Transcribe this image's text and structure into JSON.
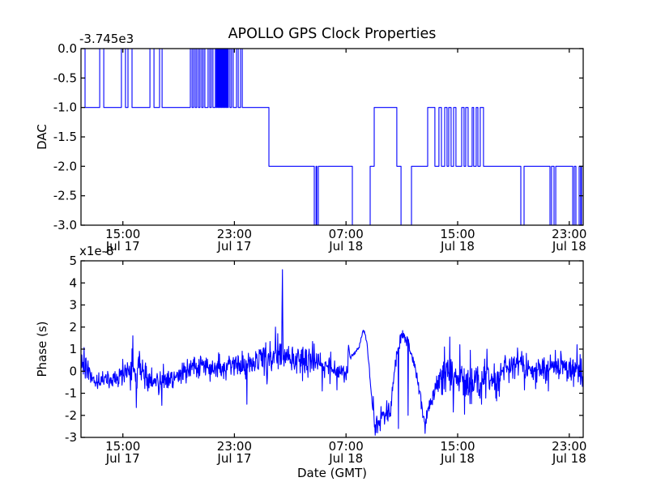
{
  "figure": {
    "background": "#ffffff",
    "frame_color": "#000000",
    "line_color": "#0000ff"
  },
  "chart_data": [
    {
      "type": "line",
      "subplot": "top",
      "title": "APOLLO GPS Clock Properties",
      "ylabel": "DAC",
      "offset_label": "-3.745e3",
      "ylim": [
        -3.0,
        0.0
      ],
      "ytick_values": [
        0,
        -0.5,
        -1,
        -1.5,
        -2,
        -2.5,
        -3
      ],
      "ytick_labels": [
        "0.0",
        "-0.5",
        "-1.0",
        "-1.5",
        "-2.0",
        "-2.5",
        "-3.0"
      ],
      "xlim_hours": [
        0,
        36
      ],
      "xtick_hours": [
        3,
        11,
        19,
        27,
        35
      ],
      "xtick_labels": [
        [
          "15:00",
          "Jul 17"
        ],
        [
          "23:00",
          "Jul 17"
        ],
        [
          "07:00",
          "Jul 18"
        ],
        [
          "15:00",
          "Jul 18"
        ],
        [
          "23:00",
          "Jul 18"
        ]
      ],
      "grid": false,
      "legend": "none",
      "series": [
        {
          "name": "dac-steps",
          "style": "steps",
          "segments": [
            [
              0,
              0.29,
              0
            ],
            [
              0.29,
              1.34,
              -1
            ],
            [
              1.34,
              1.63,
              0
            ],
            [
              1.63,
              2.9,
              -1
            ],
            [
              2.9,
              3.19,
              0
            ],
            [
              3.19,
              3.37,
              -1
            ],
            [
              3.37,
              3.66,
              0
            ],
            [
              3.66,
              4.94,
              -1
            ],
            [
              4.94,
              5.23,
              0
            ],
            [
              5.23,
              5.63,
              -1
            ],
            [
              5.63,
              5.81,
              0
            ],
            [
              5.81,
              7.84,
              -1
            ],
            [
              7.84,
              7.96,
              0
            ],
            [
              7.96,
              8.07,
              -1
            ],
            [
              8.07,
              8.19,
              0
            ],
            [
              8.19,
              8.3,
              -1
            ],
            [
              8.3,
              8.42,
              0
            ],
            [
              8.42,
              8.53,
              -1
            ],
            [
              8.53,
              8.65,
              0
            ],
            [
              8.65,
              8.76,
              -1
            ],
            [
              8.76,
              8.88,
              0
            ],
            [
              8.88,
              9.11,
              -1
            ],
            [
              9.11,
              9.23,
              0
            ],
            [
              9.23,
              9.34,
              -1
            ],
            [
              9.34,
              9.46,
              0
            ],
            [
              9.46,
              9.63,
              -1
            ],
            [
              9.63,
              9.7,
              0
            ],
            [
              9.7,
              9.75,
              -1
            ],
            [
              9.75,
              9.81,
              0
            ],
            [
              9.81,
              9.87,
              -1
            ],
            [
              9.87,
              9.93,
              0
            ],
            [
              9.93,
              9.99,
              -1
            ],
            [
              9.99,
              10.05,
              0
            ],
            [
              10.05,
              10.11,
              -1
            ],
            [
              10.11,
              10.17,
              0
            ],
            [
              10.17,
              10.22,
              -1
            ],
            [
              10.22,
              10.28,
              0
            ],
            [
              10.28,
              10.33,
              -1
            ],
            [
              10.33,
              10.39,
              0
            ],
            [
              10.39,
              10.44,
              -1
            ],
            [
              10.44,
              10.5,
              0
            ],
            [
              10.5,
              10.56,
              -1
            ],
            [
              10.56,
              10.68,
              0
            ],
            [
              10.68,
              10.79,
              -1
            ],
            [
              10.79,
              10.91,
              0
            ],
            [
              10.91,
              11.15,
              -1
            ],
            [
              11.15,
              11.27,
              0
            ],
            [
              11.27,
              11.44,
              -1
            ],
            [
              11.44,
              11.56,
              0
            ],
            [
              11.56,
              13.47,
              -1
            ],
            [
              13.47,
              16.72,
              -2
            ],
            [
              16.72,
              16.85,
              -3
            ],
            [
              16.85,
              16.9,
              -2
            ],
            [
              16.9,
              17.01,
              -3
            ],
            [
              17.01,
              19.45,
              -2
            ],
            [
              19.45,
              20.73,
              -3
            ],
            [
              20.73,
              21.02,
              -2
            ],
            [
              21.02,
              22.64,
              -1
            ],
            [
              22.64,
              22.94,
              -2
            ],
            [
              22.94,
              23.69,
              -3
            ],
            [
              23.69,
              24.85,
              -2
            ],
            [
              24.85,
              25.37,
              -1
            ],
            [
              25.37,
              25.66,
              -2
            ],
            [
              25.66,
              25.84,
              -1
            ],
            [
              25.84,
              26.07,
              -2
            ],
            [
              26.07,
              26.24,
              -1
            ],
            [
              26.24,
              26.36,
              -2
            ],
            [
              26.36,
              26.53,
              -1
            ],
            [
              26.53,
              26.71,
              -2
            ],
            [
              26.71,
              26.88,
              -1
            ],
            [
              26.88,
              27.29,
              -2
            ],
            [
              27.29,
              27.46,
              -1
            ],
            [
              27.46,
              27.58,
              -2
            ],
            [
              27.58,
              27.75,
              -1
            ],
            [
              27.75,
              28.04,
              -2
            ],
            [
              28.04,
              28.15,
              -1
            ],
            [
              28.15,
              28.33,
              -2
            ],
            [
              28.33,
              28.45,
              -1
            ],
            [
              28.45,
              28.62,
              -2
            ],
            [
              28.62,
              28.85,
              -1
            ],
            [
              28.85,
              31.53,
              -2
            ],
            [
              31.53,
              31.76,
              -3
            ],
            [
              31.76,
              33.62,
              -2
            ],
            [
              33.62,
              33.73,
              -3
            ],
            [
              33.73,
              33.91,
              -2
            ],
            [
              33.91,
              34.03,
              -3
            ],
            [
              34.03,
              35.25,
              -2
            ],
            [
              35.25,
              35.36,
              -3
            ],
            [
              35.36,
              35.48,
              -2
            ],
            [
              35.48,
              35.71,
              -3
            ],
            [
              35.71,
              35.82,
              -2
            ],
            [
              35.82,
              35.88,
              -3
            ],
            [
              35.88,
              36,
              -2
            ]
          ]
        }
      ]
    },
    {
      "type": "line",
      "subplot": "bottom",
      "title": "",
      "ylabel": "Phase (s)",
      "xlabel": "Date (GMT)",
      "offset_label": "x1e-8",
      "ylim": [
        -3,
        5
      ],
      "ytick_values": [
        5,
        4,
        3,
        2,
        1,
        0,
        -1,
        -2,
        -3
      ],
      "ytick_labels": [
        "5",
        "4",
        "3",
        "2",
        "1",
        "0",
        "-1",
        "-2",
        "-3"
      ],
      "xlim_hours": [
        0,
        36
      ],
      "xtick_hours": [
        3,
        11,
        19,
        27,
        35
      ],
      "xtick_labels": [
        [
          "15:00",
          "Jul 17"
        ],
        [
          "23:00",
          "Jul 17"
        ],
        [
          "07:00",
          "Jul 18"
        ],
        [
          "15:00",
          "Jul 18"
        ],
        [
          "23:00",
          "Jul 18"
        ]
      ],
      "grid": false,
      "legend": "none",
      "series": [
        {
          "name": "phase-noise",
          "style": "noisy",
          "samples": 1300,
          "seed": 20,
          "clamp": [
            -2.95,
            4.65
          ],
          "mean_keypoints": [
            [
              0,
              0.5
            ],
            [
              0.3,
              0.3
            ],
            [
              0.7,
              -0.3
            ],
            [
              1.5,
              -0.5
            ],
            [
              2.3,
              -0.4
            ],
            [
              2.9,
              -0.15
            ],
            [
              3.4,
              0.1
            ],
            [
              4.2,
              0
            ],
            [
              4.8,
              -0.3
            ],
            [
              5.7,
              -0.45
            ],
            [
              6.5,
              -0.35
            ],
            [
              7.1,
              -0.1
            ],
            [
              7.9,
              0.2
            ],
            [
              9,
              0.25
            ],
            [
              10.5,
              0.2
            ],
            [
              11.5,
              0.28
            ],
            [
              12.5,
              0.4
            ],
            [
              13.4,
              0.55
            ],
            [
              14.2,
              0.8
            ],
            [
              14.6,
              0.75
            ],
            [
              15.3,
              0.55
            ],
            [
              16.2,
              0.45
            ],
            [
              16.8,
              0.55
            ],
            [
              17.5,
              0.25
            ],
            [
              18.3,
              0.05
            ],
            [
              18.9,
              -0.1
            ],
            [
              19.12,
              -0.1
            ],
            [
              19.16,
              1.3
            ],
            [
              19.3,
              0.6
            ],
            [
              19.9,
              1.05
            ],
            [
              20.25,
              1.9
            ],
            [
              20.5,
              1.3
            ],
            [
              20.8,
              -0.9
            ],
            [
              21.1,
              -2.6
            ],
            [
              21.6,
              -1.9
            ],
            [
              22.2,
              -1.7
            ],
            [
              22.5,
              0.2
            ],
            [
              22.9,
              1.5
            ],
            [
              23.3,
              1.6
            ],
            [
              23.6,
              1
            ],
            [
              24,
              0
            ],
            [
              24.35,
              -1.2
            ],
            [
              24.67,
              -2.5
            ],
            [
              25,
              -1.6
            ],
            [
              25.5,
              -0.5
            ],
            [
              25.85,
              -0.3
            ],
            [
              26.4,
              -0.3
            ],
            [
              27.1,
              -0.4
            ],
            [
              27.8,
              -0.5
            ],
            [
              28.6,
              -0.4
            ],
            [
              29.2,
              -0.3
            ],
            [
              30,
              -0.15
            ],
            [
              30.8,
              0.2
            ],
            [
              31.4,
              0.35
            ],
            [
              32.3,
              -0.05
            ],
            [
              33,
              0.05
            ],
            [
              33.6,
              0.2
            ],
            [
              34.2,
              0.3
            ],
            [
              35,
              0.1
            ],
            [
              35.6,
              0.15
            ],
            [
              36,
              0.05
            ]
          ],
          "sigma_segments": [
            [
              0,
              0.5,
              0.28
            ],
            [
              0.5,
              2.9,
              0.22
            ],
            [
              2.9,
              3.3,
              0.3
            ],
            [
              3.3,
              4.3,
              0.5
            ],
            [
              4.3,
              7.6,
              0.26
            ],
            [
              7.6,
              12.8,
              0.27
            ],
            [
              12.8,
              14.35,
              0.42
            ],
            [
              14.35,
              14.55,
              0.3
            ],
            [
              14.55,
              16,
              0.35
            ],
            [
              16,
              18.3,
              0.3
            ],
            [
              18.3,
              19.1,
              0.2
            ],
            [
              19.1,
              20.55,
              0.05
            ],
            [
              20.55,
              20.95,
              0.1
            ],
            [
              20.95,
              22.35,
              0.25
            ],
            [
              22.35,
              23.55,
              0.18
            ],
            [
              23.55,
              25.45,
              0.16
            ],
            [
              25.45,
              25.85,
              0.2
            ],
            [
              25.85,
              30.3,
              0.42
            ],
            [
              30.3,
              36,
              0.3
            ]
          ],
          "spikes": [
            [
              3.7,
              1.6
            ],
            [
              3.95,
              -1.65
            ],
            [
              5.8,
              -1.55
            ],
            [
              11.9,
              -1.5
            ],
            [
              13.1,
              0.95
            ],
            [
              13.55,
              1.35
            ],
            [
              13.95,
              2
            ],
            [
              14.1,
              1.7
            ],
            [
              14.4,
              2.9
            ],
            [
              14.45,
              4.6
            ],
            [
              14.48,
              2.4
            ],
            [
              16.6,
              1.35
            ],
            [
              17.3,
              -0.9
            ],
            [
              18.35,
              -0.85
            ],
            [
              21.1,
              -2.9
            ],
            [
              21.45,
              -2.7
            ],
            [
              22.75,
              -2.6
            ],
            [
              23.45,
              -2
            ],
            [
              24.67,
              -2.82
            ],
            [
              26.05,
              1.1
            ],
            [
              26.45,
              1.55
            ],
            [
              26.7,
              -1.85
            ],
            [
              27.15,
              1.2
            ],
            [
              27.5,
              -1.95
            ],
            [
              27.9,
              0.95
            ],
            [
              28.7,
              -1.5
            ],
            [
              29.1,
              1
            ],
            [
              29.8,
              -1.35
            ],
            [
              31.3,
              1.05
            ],
            [
              31.8,
              -0.85
            ],
            [
              32.6,
              -0.8
            ],
            [
              33.5,
              -0.9
            ],
            [
              34,
              0.95
            ],
            [
              35.3,
              -0.7
            ],
            [
              35.55,
              1.2
            ],
            [
              35.8,
              -0.6
            ]
          ]
        }
      ]
    }
  ]
}
